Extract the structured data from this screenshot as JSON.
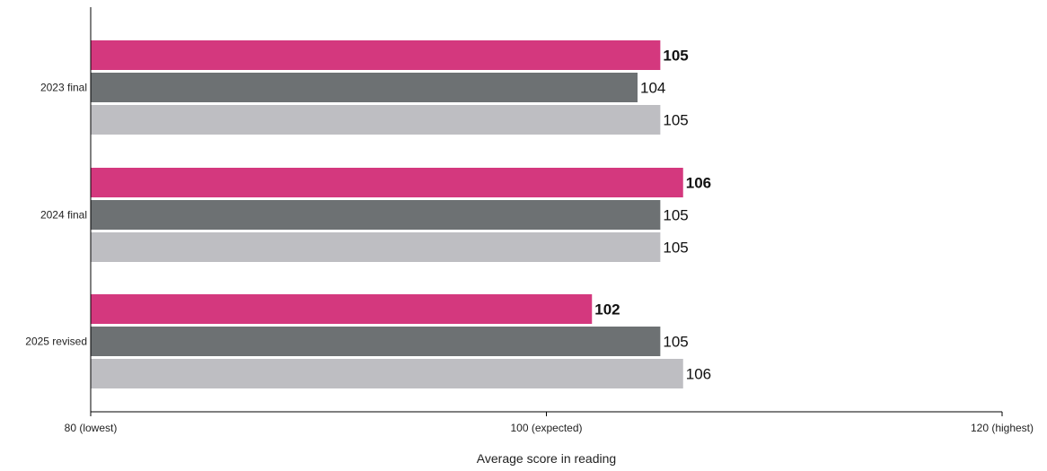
{
  "chart_data": {
    "type": "bar",
    "orientation": "horizontal",
    "categories": [
      "2023 final",
      "2024 final",
      "2025 revised"
    ],
    "series": [
      {
        "color": "#d4387e",
        "values": [
          105,
          106,
          102
        ],
        "bold_labels": true
      },
      {
        "color": "#6d7173",
        "values": [
          104,
          105,
          105
        ],
        "bold_labels": false
      },
      {
        "color": "#bebec2",
        "values": [
          105,
          105,
          106
        ],
        "bold_labels": false
      }
    ],
    "xlim": [
      80,
      120
    ],
    "xticks": [
      {
        "value": 80,
        "label": "80 (lowest)"
      },
      {
        "value": 100,
        "label": "100 (expected)"
      },
      {
        "value": 120,
        "label": "120 (highest)"
      }
    ],
    "xlabel": "Average score in reading",
    "ylabel": "",
    "title": "",
    "grid": false,
    "legend": "none"
  }
}
